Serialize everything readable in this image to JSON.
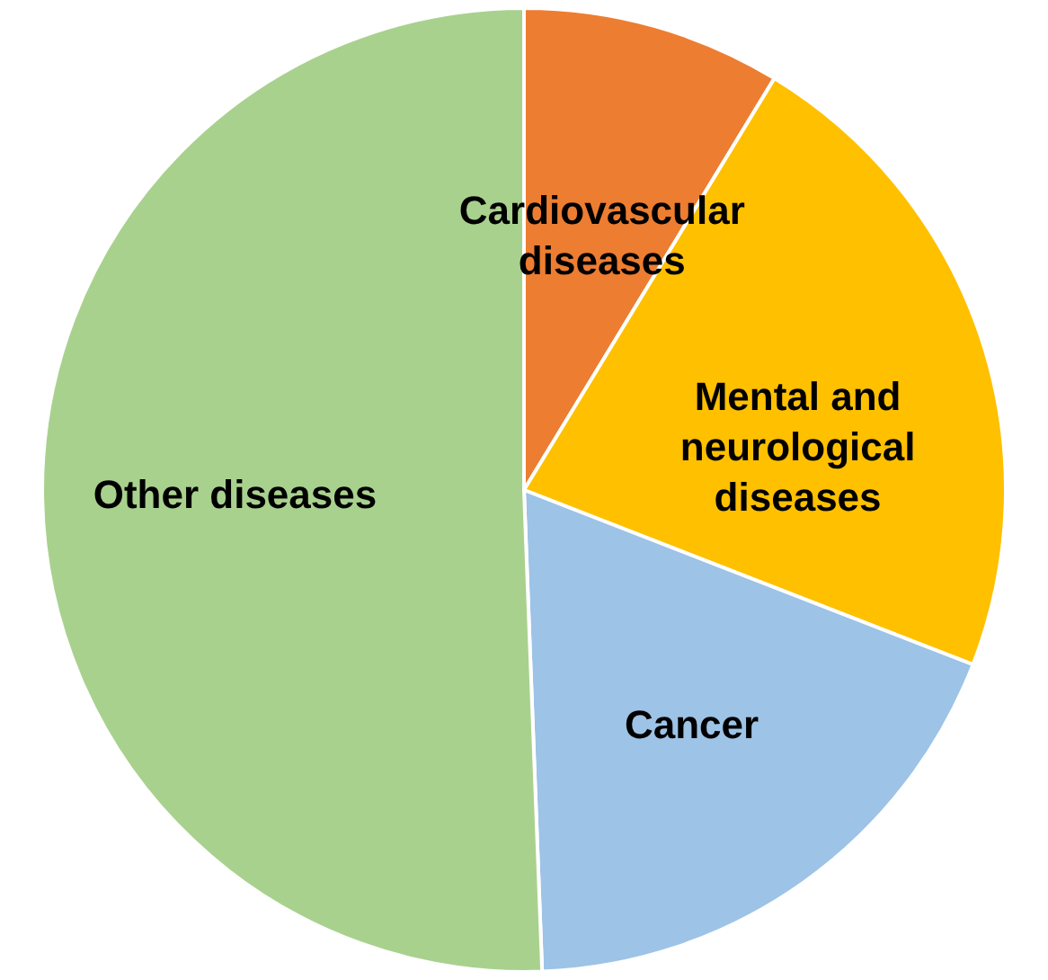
{
  "chart_data": {
    "type": "pie",
    "categories": [
      "Cardiovascular diseases",
      "Mental and neurological diseases",
      "Cancer",
      "Other diseases"
    ],
    "values": [
      8.7,
      22.2,
      18.5,
      50.6
    ],
    "colors": [
      "#ed7d31",
      "#ffc000",
      "#9dc3e6",
      "#a9d18e"
    ],
    "legend": false
  }
}
